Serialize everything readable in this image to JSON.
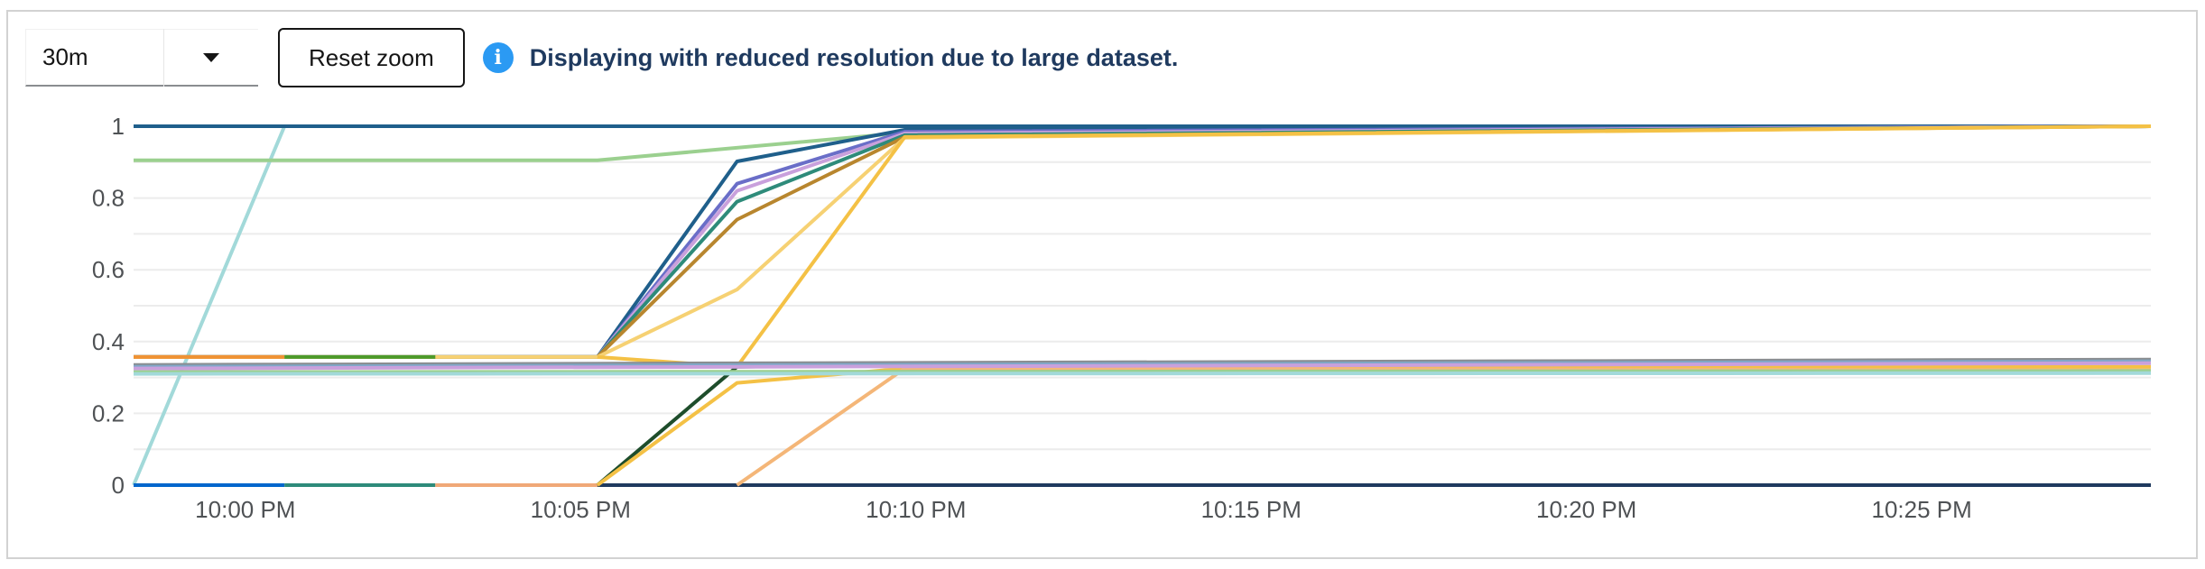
{
  "toolbar": {
    "range_value": "30m",
    "reset_label": "Reset zoom",
    "alert_icon": "info-circle-icon",
    "alert_text": "Displaying with reduced resolution due to large dataset.",
    "alert_color": "#2b9af3"
  },
  "chart_data": {
    "type": "line",
    "title": "",
    "xlabel": "",
    "ylabel": "",
    "xlim": [
      "9:58:20 PM",
      "10:28:25 PM"
    ],
    "ylim": [
      0,
      1
    ],
    "grid": true,
    "legend": "none",
    "x_ticks": [
      "10:00 PM",
      "10:05 PM",
      "10:10 PM",
      "10:15 PM",
      "10:20 PM",
      "10:25 PM"
    ],
    "y_ticks": [
      "0",
      "0.2",
      "0.4",
      "0.6",
      "0.8",
      "1"
    ],
    "series": [
      {
        "color": "#a2d9d9",
        "x": [
          "9:58:20 PM",
          "10:00:35 PM"
        ],
        "y": [
          0,
          1
        ]
      },
      {
        "color": "#9bd08f",
        "x": [
          "9:58:20 PM",
          "10:05:15 PM",
          "10:10:00 PM",
          "10:15:00 PM",
          "10:28:25 PM"
        ],
        "y": [
          0.905,
          0.905,
          0.985,
          0.995,
          1
        ]
      },
      {
        "color": "#1f5f8b",
        "x": [
          "9:58:20 PM",
          "10:28:25 PM"
        ],
        "y": [
          1,
          1
        ]
      },
      {
        "color": "#0066cc",
        "x": [
          "9:58:20 PM",
          "10:00:35 PM"
        ],
        "y": [
          0,
          0
        ]
      },
      {
        "color": "#2e8b7a",
        "x": [
          "10:00:35 PM",
          "10:02:50 PM"
        ],
        "y": [
          0,
          0
        ]
      },
      {
        "color": "#f0a878",
        "x": [
          "10:02:50 PM",
          "10:05:15 PM"
        ],
        "y": [
          0,
          0
        ]
      },
      {
        "color": "#1f3a5f",
        "x": [
          "10:05:15 PM",
          "10:28:25 PM"
        ],
        "y": [
          0,
          0
        ]
      },
      {
        "color": "#1f5f8b",
        "x": [
          "9:58:20 PM",
          "10:05:15 PM",
          "10:07:20 PM",
          "10:09:50 PM",
          "10:28:25 PM"
        ],
        "y": [
          0.357,
          0.357,
          0.902,
          0.99,
          1
        ]
      },
      {
        "color": "#6a6ec8",
        "x": [
          "9:58:20 PM",
          "10:05:15 PM",
          "10:07:20 PM",
          "10:09:50 PM",
          "10:28:25 PM"
        ],
        "y": [
          0.357,
          0.357,
          0.84,
          0.985,
          1
        ]
      },
      {
        "color": "#c9a0dc",
        "x": [
          "9:58:20 PM",
          "10:05:15 PM",
          "10:07:20 PM",
          "10:09:50 PM",
          "10:28:25 PM"
        ],
        "y": [
          0.357,
          0.357,
          0.82,
          0.98,
          1
        ]
      },
      {
        "color": "#2e8b7a",
        "x": [
          "9:58:20 PM",
          "10:05:15 PM",
          "10:07:20 PM",
          "10:09:50 PM",
          "10:28:25 PM"
        ],
        "y": [
          0.357,
          0.357,
          0.79,
          0.975,
          1
        ]
      },
      {
        "color": "#b8862e",
        "x": [
          "9:58:20 PM",
          "10:05:15 PM",
          "10:07:20 PM",
          "10:09:50 PM",
          "10:28:25 PM"
        ],
        "y": [
          0.357,
          0.357,
          0.74,
          0.97,
          1
        ]
      },
      {
        "color": "#f6d173",
        "x": [
          "9:58:20 PM",
          "10:05:15 PM",
          "10:07:20 PM",
          "10:09:50 PM",
          "10:28:25 PM"
        ],
        "y": [
          0.357,
          0.357,
          0.545,
          0.968,
          1
        ]
      },
      {
        "color": "#ef9234",
        "x": [
          "9:58:20 PM",
          "10:00:35 PM"
        ],
        "y": [
          0.357,
          0.357
        ]
      },
      {
        "color": "#4c9a2a",
        "x": [
          "10:00:35 PM",
          "10:02:50 PM"
        ],
        "y": [
          0.357,
          0.357
        ]
      },
      {
        "color": "#f4c145",
        "x": [
          "10:05:15 PM",
          "10:07:20 PM",
          "10:09:50 PM",
          "10:28:25 PM"
        ],
        "y": [
          0.357,
          0.33,
          0.97,
          1
        ]
      },
      {
        "color": "#1e4d2b",
        "x": [
          "10:05:15 PM",
          "10:07:20 PM",
          "10:09:50 PM",
          "10:28:25 PM"
        ],
        "y": [
          0,
          0.33,
          0.335,
          0.345
        ]
      },
      {
        "color": "#f4c145",
        "x": [
          "10:05:15 PM",
          "10:07:20 PM",
          "10:09:50 PM",
          "10:28:25 PM"
        ],
        "y": [
          0,
          0.285,
          0.325,
          0.33
        ]
      },
      {
        "color": "#f4b678",
        "x": [
          "10:07:20 PM",
          "10:09:50 PM",
          "10:28:25 PM"
        ],
        "y": [
          0,
          0.325,
          0.32
        ]
      },
      {
        "color": "#8a8d90",
        "x": [
          "9:58:20 PM",
          "10:28:25 PM"
        ],
        "y": [
          0.335,
          0.35
        ]
      },
      {
        "color": "#7fa7c8",
        "x": [
          "9:58:20 PM",
          "10:28:25 PM"
        ],
        "y": [
          0.33,
          0.345
        ]
      },
      {
        "color": "#c9a0dc",
        "x": [
          "9:58:20 PM",
          "10:28:25 PM"
        ],
        "y": [
          0.325,
          0.34
        ]
      },
      {
        "color": "#9bd08f",
        "x": [
          "9:58:20 PM",
          "10:28:25 PM"
        ],
        "y": [
          0.315,
          0.318
        ]
      },
      {
        "color": "#a2d9d9",
        "x": [
          "9:58:20 PM",
          "10:28:25 PM"
        ],
        "y": [
          0.31,
          0.312
        ]
      }
    ]
  }
}
